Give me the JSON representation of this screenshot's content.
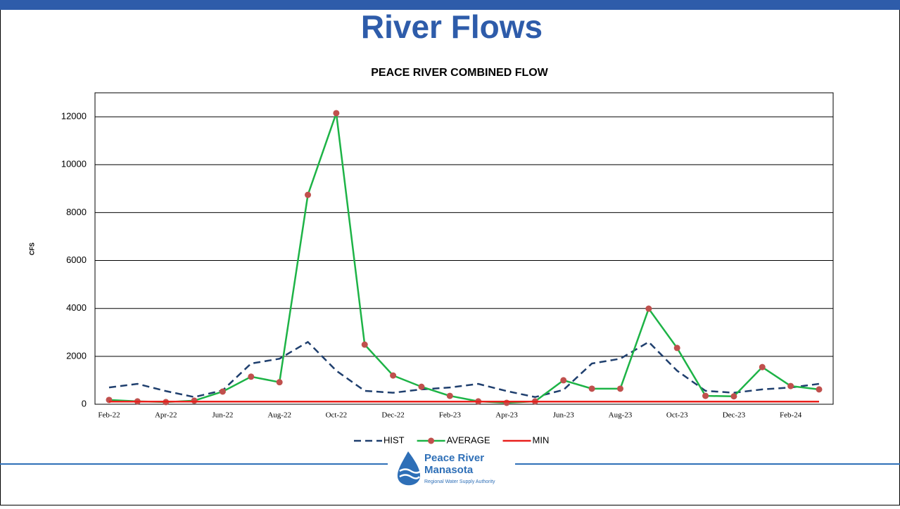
{
  "slide_title": "River Flows",
  "logo": {
    "line1": "Peace River",
    "line2": "Manasota",
    "line3": "Regional Water Supply Authority"
  },
  "chart_data": {
    "type": "line",
    "title": "PEACE  RIVER COMBINED FLOW",
    "y_label": "CFS",
    "categories": [
      "Feb-22",
      null,
      "Apr-22",
      null,
      "Jun-22",
      null,
      "Aug-22",
      null,
      "Oct-22",
      null,
      "Dec-22",
      null,
      "Feb-23",
      null,
      "Apr-23",
      null,
      "Jun-23",
      null,
      "Aug-23",
      null,
      "Oct-23",
      null,
      "Dec-23",
      null,
      "Feb-24",
      null
    ],
    "series": [
      {
        "name": "HIST",
        "color": "#1f3f6e",
        "dash": true,
        "marker": false,
        "values": [
          700,
          850,
          550,
          300,
          580,
          1700,
          1900,
          2600,
          1400,
          560,
          480,
          620,
          700,
          850,
          550,
          300,
          600,
          1700,
          1900,
          2600,
          1400,
          560,
          480,
          620,
          700,
          850
        ]
      },
      {
        "name": "AVERAGE",
        "color": "#1db346",
        "marker_color": "#c0504d",
        "dash": false,
        "marker": true,
        "values": [
          180,
          120,
          90,
          150,
          530,
          1150,
          920,
          8740,
          12150,
          2490,
          1200,
          730,
          350,
          120,
          60,
          120,
          1000,
          650,
          650,
          3990,
          2350,
          350,
          330,
          1550,
          760,
          620
        ]
      },
      {
        "name": "MIN",
        "color": "#e8201c",
        "dash": false,
        "marker": false,
        "values": [
          110,
          110,
          110,
          110,
          110,
          110,
          110,
          110,
          110,
          110,
          110,
          110,
          110,
          110,
          110,
          110,
          110,
          110,
          110,
          110,
          110,
          110,
          110,
          110,
          110,
          110
        ]
      }
    ],
    "ylim": [
      0,
      13000
    ],
    "yticks": [
      0,
      2000,
      4000,
      6000,
      8000,
      10000,
      12000
    ],
    "grid": true,
    "legend": "bottom"
  }
}
